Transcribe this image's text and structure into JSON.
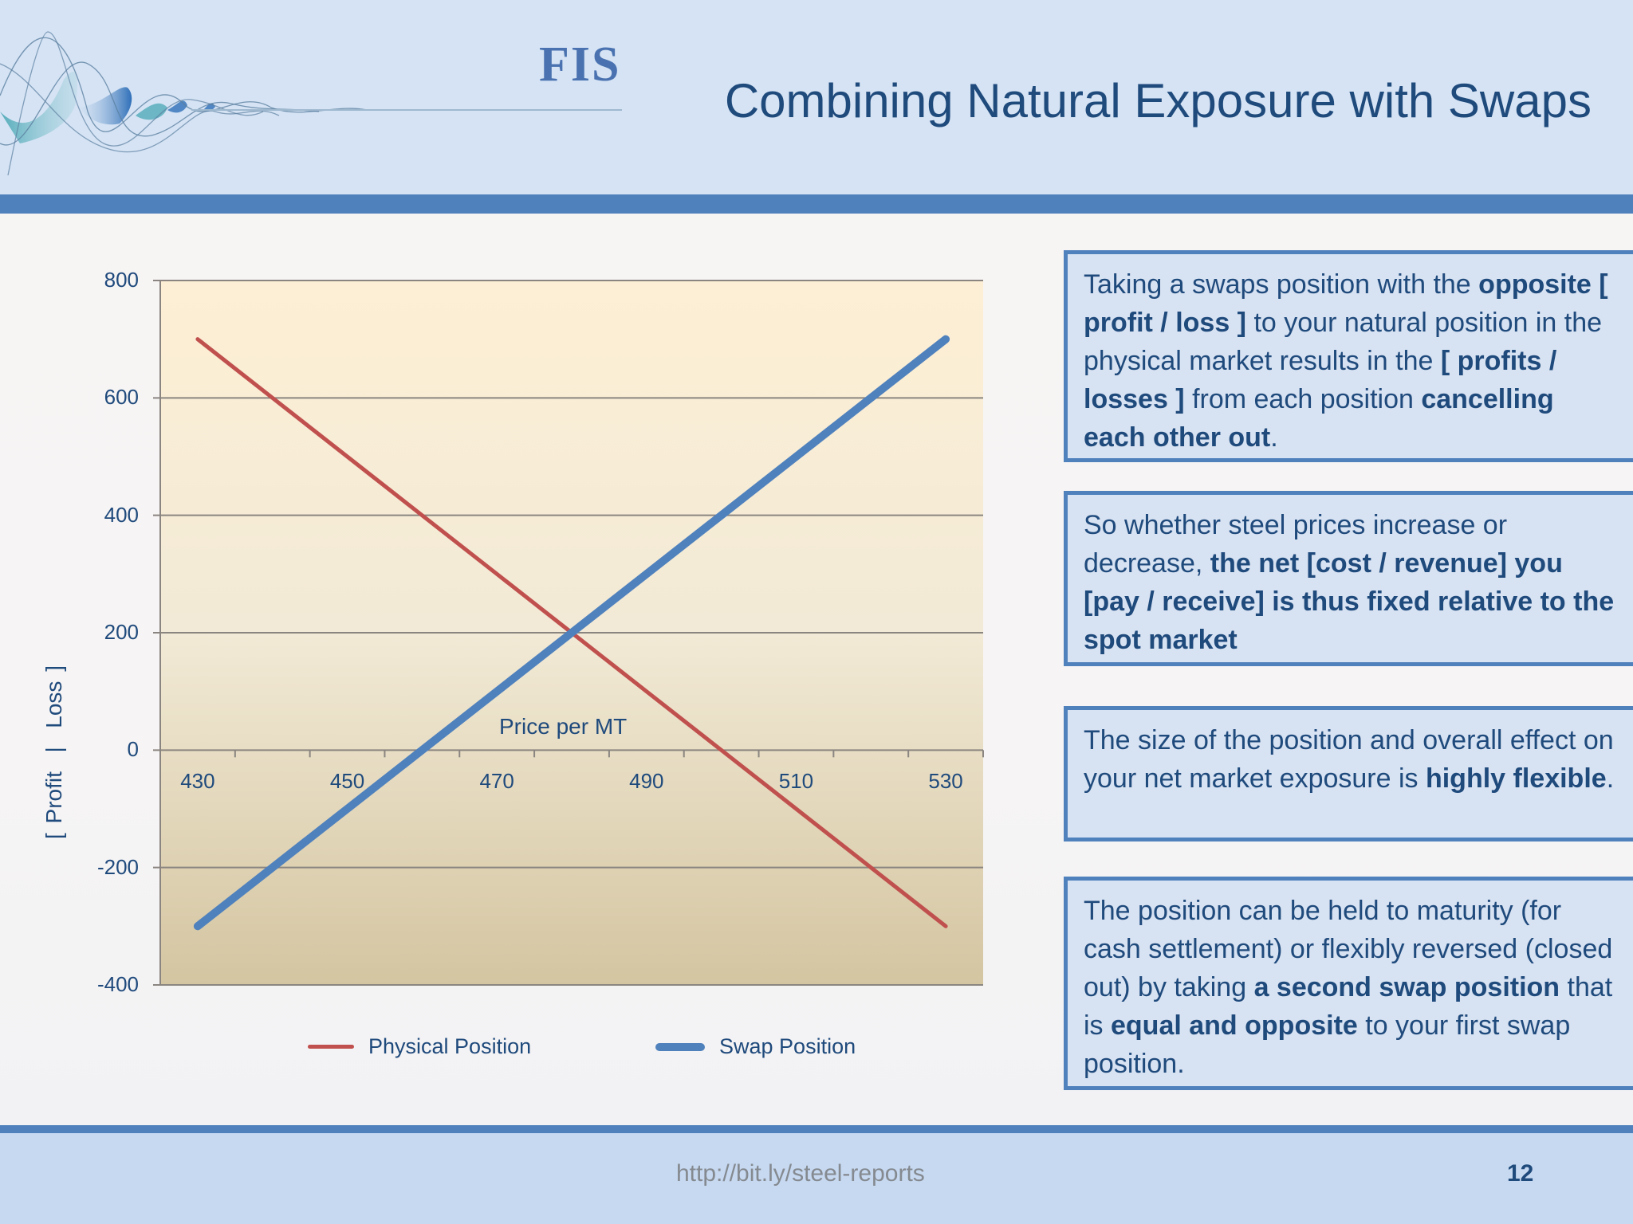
{
  "header": {
    "logo": "FIS",
    "title": "Combining Natural Exposure with Swaps"
  },
  "chart_data": {
    "type": "line",
    "title": "",
    "xlabel": "Price per MT",
    "ylabel": "[ Profit  |  Loss ]",
    "x": [
      430,
      440,
      450,
      460,
      470,
      480,
      490,
      500,
      510,
      520,
      530
    ],
    "x_tick_labels": [
      "430",
      "450",
      "470",
      "490",
      "510",
      "530"
    ],
    "y_tick_labels": [
      "800",
      "600",
      "400",
      "200",
      "0",
      "-200",
      "-400"
    ],
    "ylim": [
      -400,
      800
    ],
    "grid": true,
    "legend_position": "bottom",
    "series": [
      {
        "name": "Physical Position",
        "color": "#c0504d",
        "values": [
          700,
          600,
          500,
          400,
          300,
          200,
          100,
          0,
          -100,
          -200,
          -300
        ]
      },
      {
        "name": "Swap Position",
        "color": "#4f81bd",
        "values": [
          -300,
          -200,
          -100,
          0,
          100,
          200,
          300,
          400,
          500,
          600,
          700
        ]
      }
    ]
  },
  "legend": {
    "physical": "Physical Position",
    "swap": "Swap Position"
  },
  "boxes": [
    {
      "parts": [
        {
          "t": "Taking a swaps position with the ",
          "b": false
        },
        {
          "t": "opposite [ profit / loss ]",
          "b": true
        },
        {
          "t": " to your natural position in the physical market results in the ",
          "b": false
        },
        {
          "t": "[ profits / losses ]",
          "b": true
        },
        {
          "t": " from each position ",
          "b": false
        },
        {
          "t": "cancelling each other out",
          "b": true
        },
        {
          "t": ".",
          "b": false
        }
      ]
    },
    {
      "parts": [
        {
          "t": "So whether steel prices increase or decrease, ",
          "b": false
        },
        {
          "t": "the net [cost / revenue] you [pay / receive] is thus fixed relative to the spot market",
          "b": true
        }
      ]
    },
    {
      "parts": [
        {
          "t": "The size of the position and overall effect on your net market exposure is ",
          "b": false
        },
        {
          "t": "highly flexible",
          "b": true
        },
        {
          "t": ".",
          "b": false
        }
      ]
    },
    {
      "parts": [
        {
          "t": "The position can be held to maturity (for cash settlement) or flexibly reversed (closed out) by taking ",
          "b": false
        },
        {
          "t": "a second swap position",
          "b": true
        },
        {
          "t": " that is ",
          "b": false
        },
        {
          "t": "equal and opposite",
          "b": true
        },
        {
          "t": " to your first swap position.",
          "b": false
        }
      ]
    }
  ],
  "footer": {
    "url": "http://bit.ly/steel-reports",
    "page": "12"
  },
  "colors": {
    "accent": "#4f81bd",
    "title": "#1f4a7c",
    "physical": "#c0504d",
    "swap": "#4f81bd"
  }
}
